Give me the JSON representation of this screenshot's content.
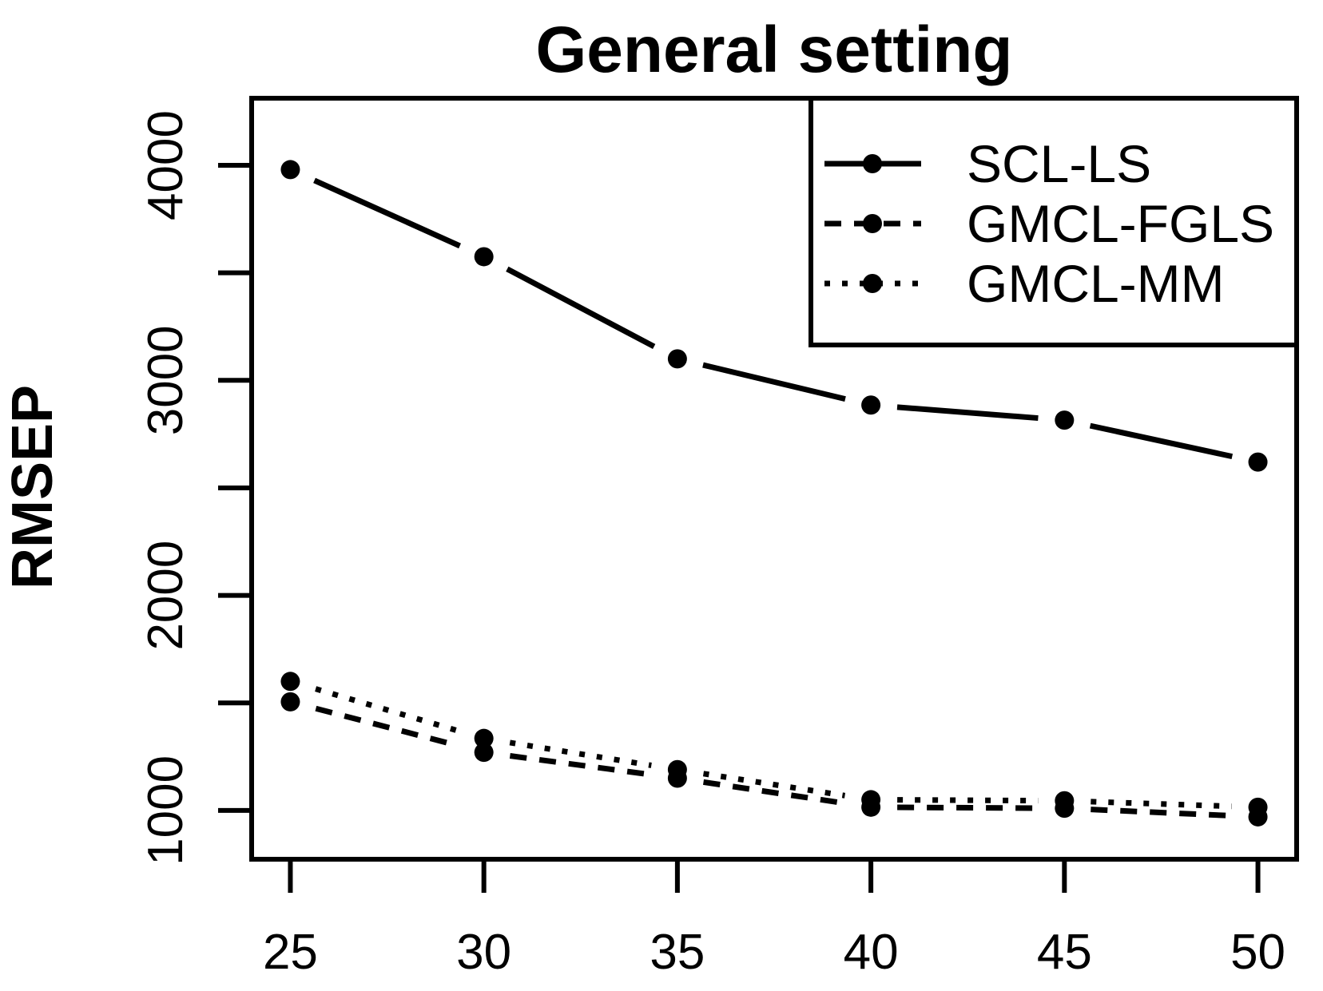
{
  "chart_data": {
    "type": "line",
    "title": "General setting",
    "xlabel": "",
    "ylabel": "RMSEP",
    "x": [
      25,
      30,
      35,
      40,
      45,
      50
    ],
    "series": [
      {
        "name": "SCL-LS",
        "linestyle": "solid",
        "marker": "filled-circle",
        "color": "#000000",
        "values": [
          3980,
          3575,
          3100,
          2885,
          2815,
          2620
        ]
      },
      {
        "name": "GMCL-FGLS",
        "linestyle": "dashed",
        "marker": "filled-circle",
        "color": "#000000",
        "values": [
          1505,
          1270,
          1150,
          1015,
          1010,
          970
        ]
      },
      {
        "name": "GMCL-MM",
        "linestyle": "dotted",
        "marker": "filled-circle",
        "color": "#000000",
        "values": [
          1600,
          1335,
          1190,
          1050,
          1045,
          1015
        ]
      }
    ],
    "x_ticks": [
      25,
      30,
      35,
      40,
      45,
      50
    ],
    "x_tick_labels": [
      "25",
      "30",
      "35",
      "40",
      "45",
      "50"
    ],
    "y_ticks": [
      1000,
      1500,
      2000,
      2500,
      3000,
      3500,
      4000
    ],
    "y_tick_labels": [
      "1000",
      "",
      "2000",
      "",
      "3000",
      "",
      "4000"
    ],
    "xlim": [
      24,
      51
    ],
    "ylim": [
      773,
      4312
    ],
    "grid": false,
    "legend_position": "topright",
    "plot_style": "points-and-lines-with-gaps",
    "colors": {
      "foreground": "#000000",
      "background": "#ffffff"
    }
  }
}
